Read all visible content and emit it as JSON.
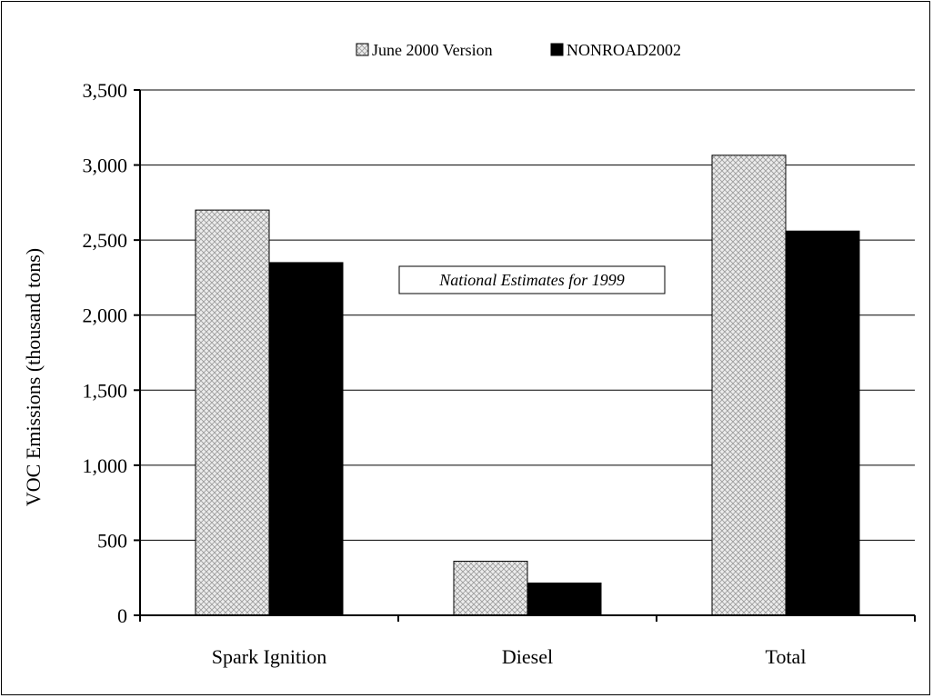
{
  "chart_data": {
    "type": "bar",
    "categories": [
      "Spark Ignition",
      "Diesel",
      "Total"
    ],
    "series": [
      {
        "name": "June 2000 Version",
        "values": [
          2700,
          360,
          3065
        ],
        "fill": "crosshatch"
      },
      {
        "name": "NONROAD2002",
        "values": [
          2350,
          215,
          2560
        ],
        "fill": "#000000"
      }
    ],
    "ylabel": "VOC Emissions (thousand tons)",
    "xlabel": "",
    "ylim": [
      0,
      3500
    ],
    "yticks": [
      0,
      500,
      1000,
      1500,
      2000,
      2500,
      3000,
      3500
    ],
    "ytick_labels": [
      "0",
      "500",
      "1,000",
      "1,500",
      "2,000",
      "2,500",
      "3,000",
      "3,500"
    ],
    "grid": true,
    "legend_position": "top",
    "annotation": "National Estimates for 1999"
  }
}
